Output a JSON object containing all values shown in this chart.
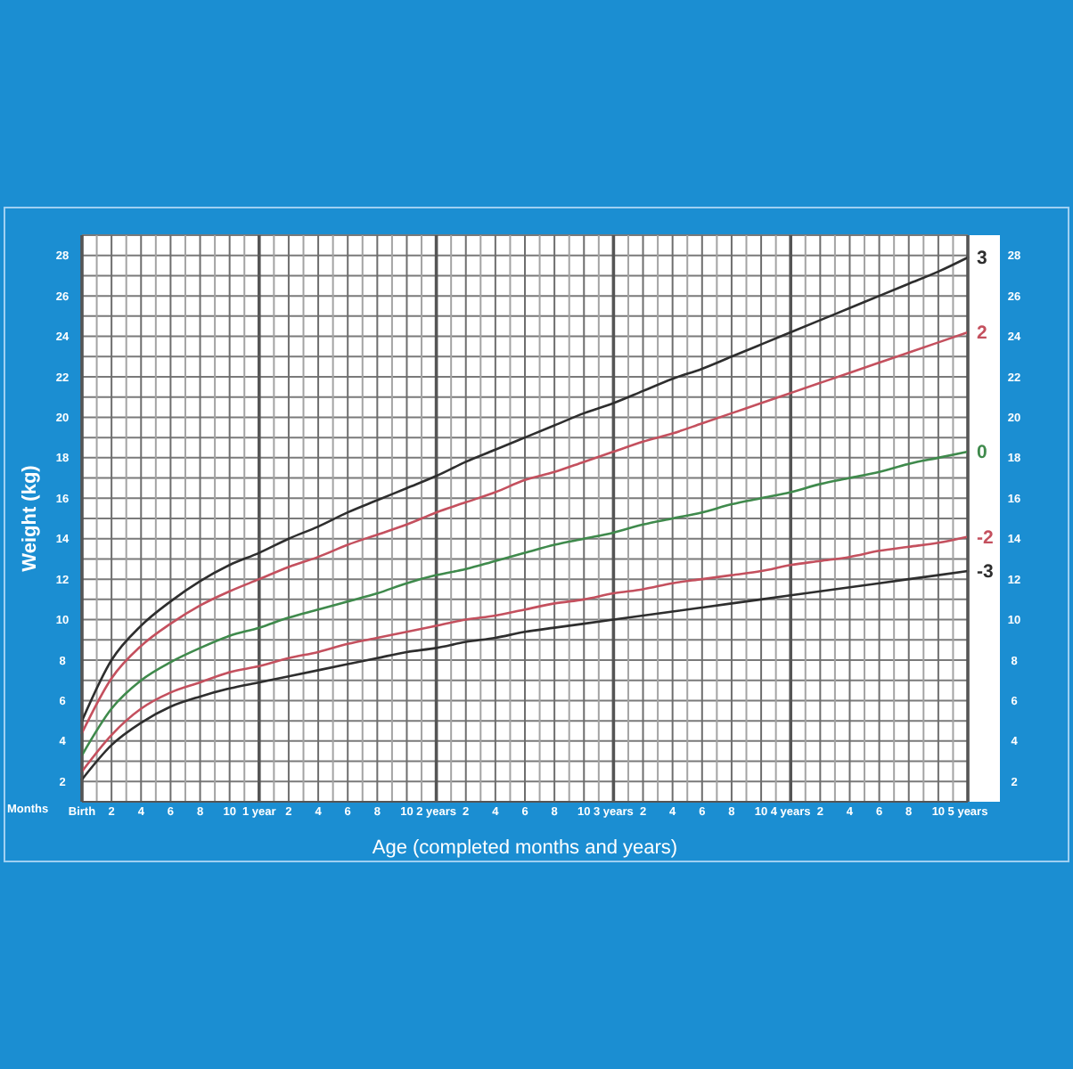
{
  "chart_data": {
    "type": "line",
    "xlabel": "Age (completed months and years)",
    "ylabel": "Weight (kg)",
    "annotations": [
      "Months"
    ],
    "categories": [
      "Birth",
      "2",
      "4",
      "6",
      "8",
      "10",
      "1 year",
      "2",
      "4",
      "6",
      "8",
      "10",
      "2 years",
      "2",
      "4",
      "6",
      "8",
      "10",
      "3 years",
      "2",
      "4",
      "6",
      "8",
      "10",
      "4 years",
      "2",
      "4",
      "6",
      "8",
      "10",
      "5 years"
    ],
    "ylim": [
      1,
      29
    ],
    "yticks": [
      {
        "value": 1,
        "label": null
      },
      2,
      {
        "value": 3,
        "label": null
      },
      4,
      {
        "value": 5,
        "label": null
      },
      6,
      {
        "value": 7,
        "label": null
      },
      8,
      {
        "value": 9,
        "label": null
      },
      10,
      {
        "value": 11,
        "label": null
      },
      12,
      {
        "value": 13,
        "label": null
      },
      14,
      {
        "value": 15,
        "label": null
      },
      16,
      {
        "value": 17,
        "label": null
      },
      18,
      {
        "value": 19,
        "label": null
      },
      20,
      {
        "value": 21,
        "label": null
      },
      22,
      {
        "value": 23,
        "label": null
      },
      24,
      {
        "value": 25,
        "label": null
      },
      26,
      {
        "value": 27,
        "label": null
      },
      28,
      {
        "value": 29,
        "label": null
      }
    ],
    "y2lim": [
      1,
      29
    ],
    "y2ticks": [
      {
        "value": 1,
        "label": null
      },
      2,
      {
        "value": 3,
        "label": null
      },
      4,
      {
        "value": 5,
        "label": null
      },
      6,
      {
        "value": 7,
        "label": null
      },
      8,
      {
        "value": 9,
        "label": null
      },
      10,
      {
        "value": 11,
        "label": null
      },
      12,
      {
        "value": 13,
        "label": null
      },
      14,
      {
        "value": 15,
        "label": null
      },
      16,
      {
        "value": 17,
        "label": null
      },
      18,
      {
        "value": 19,
        "label": null
      },
      20,
      {
        "value": 21,
        "label": null
      },
      22,
      {
        "value": 23,
        "label": null
      },
      24,
      {
        "value": 25,
        "label": null
      },
      26,
      {
        "value": 27,
        "label": null
      },
      28,
      {
        "value": 29,
        "label": null
      }
    ],
    "grid": true,
    "series": [
      {
        "name": "3",
        "color": "#2e2e2e",
        "values": [
          5.0,
          8.0,
          9.7,
          10.9,
          11.9,
          12.7,
          13.3,
          14.0,
          14.6,
          15.3,
          15.9,
          16.5,
          17.1,
          17.8,
          18.4,
          19.0,
          19.6,
          20.2,
          20.7,
          21.3,
          21.9,
          22.4,
          23.0,
          23.6,
          24.2,
          24.8,
          25.4,
          26.0,
          26.6,
          27.2,
          27.9
        ]
      },
      {
        "name": "2",
        "color": "#c4505e",
        "values": [
          4.4,
          7.1,
          8.7,
          9.8,
          10.7,
          11.4,
          12.0,
          12.6,
          13.1,
          13.7,
          14.2,
          14.7,
          15.3,
          15.8,
          16.3,
          16.9,
          17.3,
          17.8,
          18.3,
          18.8,
          19.2,
          19.7,
          20.2,
          20.7,
          21.2,
          21.7,
          22.2,
          22.7,
          23.2,
          23.7,
          24.2
        ]
      },
      {
        "name": "0",
        "color": "#3f8a4c",
        "values": [
          3.3,
          5.6,
          7.0,
          7.9,
          8.6,
          9.2,
          9.6,
          10.1,
          10.5,
          10.9,
          11.3,
          11.8,
          12.2,
          12.5,
          12.9,
          13.3,
          13.7,
          14.0,
          14.3,
          14.7,
          15.0,
          15.3,
          15.7,
          16.0,
          16.3,
          16.7,
          17.0,
          17.3,
          17.7,
          18.0,
          18.3
        ]
      },
      {
        "name": "-2",
        "color": "#c4505e",
        "values": [
          2.5,
          4.3,
          5.6,
          6.4,
          6.9,
          7.4,
          7.7,
          8.1,
          8.4,
          8.8,
          9.1,
          9.4,
          9.7,
          10.0,
          10.2,
          10.5,
          10.8,
          11.0,
          11.3,
          11.5,
          11.8,
          12.0,
          12.2,
          12.4,
          12.7,
          12.9,
          13.1,
          13.4,
          13.6,
          13.8,
          14.1
        ]
      },
      {
        "name": "-3",
        "color": "#2e2e2e",
        "values": [
          2.1,
          3.8,
          4.9,
          5.7,
          6.2,
          6.6,
          6.9,
          7.2,
          7.5,
          7.8,
          8.1,
          8.4,
          8.6,
          8.9,
          9.1,
          9.4,
          9.6,
          9.8,
          10.0,
          10.2,
          10.4,
          10.6,
          10.8,
          11.0,
          11.2,
          11.4,
          11.6,
          11.8,
          12.0,
          12.2,
          12.4
        ]
      }
    ]
  }
}
